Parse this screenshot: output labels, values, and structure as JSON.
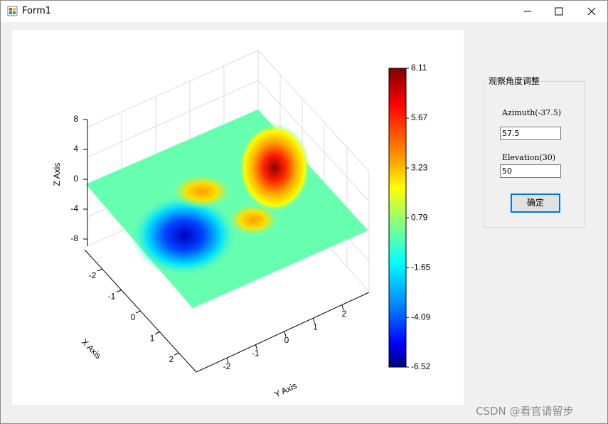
{
  "window": {
    "title": "Form1"
  },
  "chart": {
    "z_axis": {
      "label": "Z Axis",
      "ticks": [
        8,
        4,
        0,
        -4,
        -8
      ]
    },
    "x_axis": {
      "label": "X Axis",
      "ticks": [
        -2,
        -1,
        0,
        1,
        2
      ]
    },
    "y_axis": {
      "label": "Y Axis",
      "ticks": [
        -2,
        -1,
        0,
        1,
        2
      ]
    },
    "colorbar": {
      "ticks": [
        8.11,
        5.67,
        3.23,
        0.79,
        -1.65,
        -4.09,
        -6.52
      ]
    }
  },
  "panel": {
    "title": "观察角度调整",
    "azimuth_label": "Azimuth(-37.5)",
    "azimuth_value": "57.5",
    "elevation_label": "Elevation(30)",
    "elevation_value": "50",
    "button": "确定"
  },
  "watermark": "CSDN @看官请留步"
}
